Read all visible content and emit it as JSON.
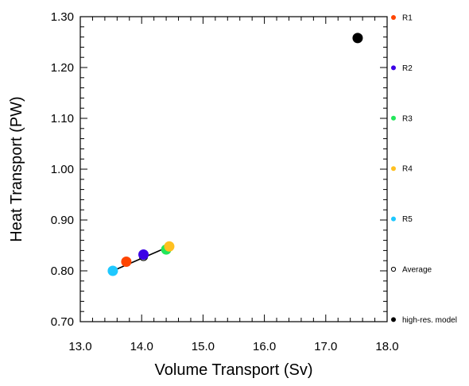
{
  "chart_data": {
    "type": "scatter",
    "xlabel": "Volume Transport (Sv)",
    "ylabel": "Heat Transport (PW)",
    "xlim": [
      13.0,
      18.0
    ],
    "ylim": [
      0.7,
      1.3
    ],
    "xticks": [
      "13.0",
      "14.0",
      "15.0",
      "16.0",
      "17.0",
      "18.0"
    ],
    "yticks": [
      "0.70",
      "0.80",
      "0.90",
      "1.00",
      "1.10",
      "1.20",
      "1.30"
    ],
    "grid": false,
    "legend_position": "right",
    "series": [
      {
        "name": "R1",
        "color": "#ff4500",
        "marker": "filled-circle",
        "points": [
          {
            "x": 13.75,
            "y": 0.818
          }
        ]
      },
      {
        "name": "R2",
        "color": "#3b00e6",
        "marker": "filled-circle",
        "points": [
          {
            "x": 14.03,
            "y": 0.832
          }
        ]
      },
      {
        "name": "R3",
        "color": "#22e65a",
        "marker": "filled-circle",
        "points": [
          {
            "x": 14.4,
            "y": 0.842
          }
        ]
      },
      {
        "name": "R4",
        "color": "#ffc020",
        "marker": "filled-circle",
        "points": [
          {
            "x": 14.45,
            "y": 0.848
          }
        ]
      },
      {
        "name": "R5",
        "color": "#1ec8ff",
        "marker": "filled-circle",
        "points": [
          {
            "x": 13.53,
            "y": 0.8
          }
        ]
      },
      {
        "name": "Average",
        "color": "#000000",
        "marker": "open-circle",
        "points": [
          {
            "x": 14.03,
            "y": 0.828
          }
        ]
      },
      {
        "name": "high-res. model",
        "color": "#000000",
        "marker": "filled-circle",
        "points": [
          {
            "x": 17.52,
            "y": 1.258
          }
        ]
      }
    ],
    "lines": [
      {
        "from": {
          "x": 13.53,
          "y": 0.8
        },
        "to": {
          "x": 14.45,
          "y": 0.848
        },
        "color": "#000000"
      }
    ]
  }
}
